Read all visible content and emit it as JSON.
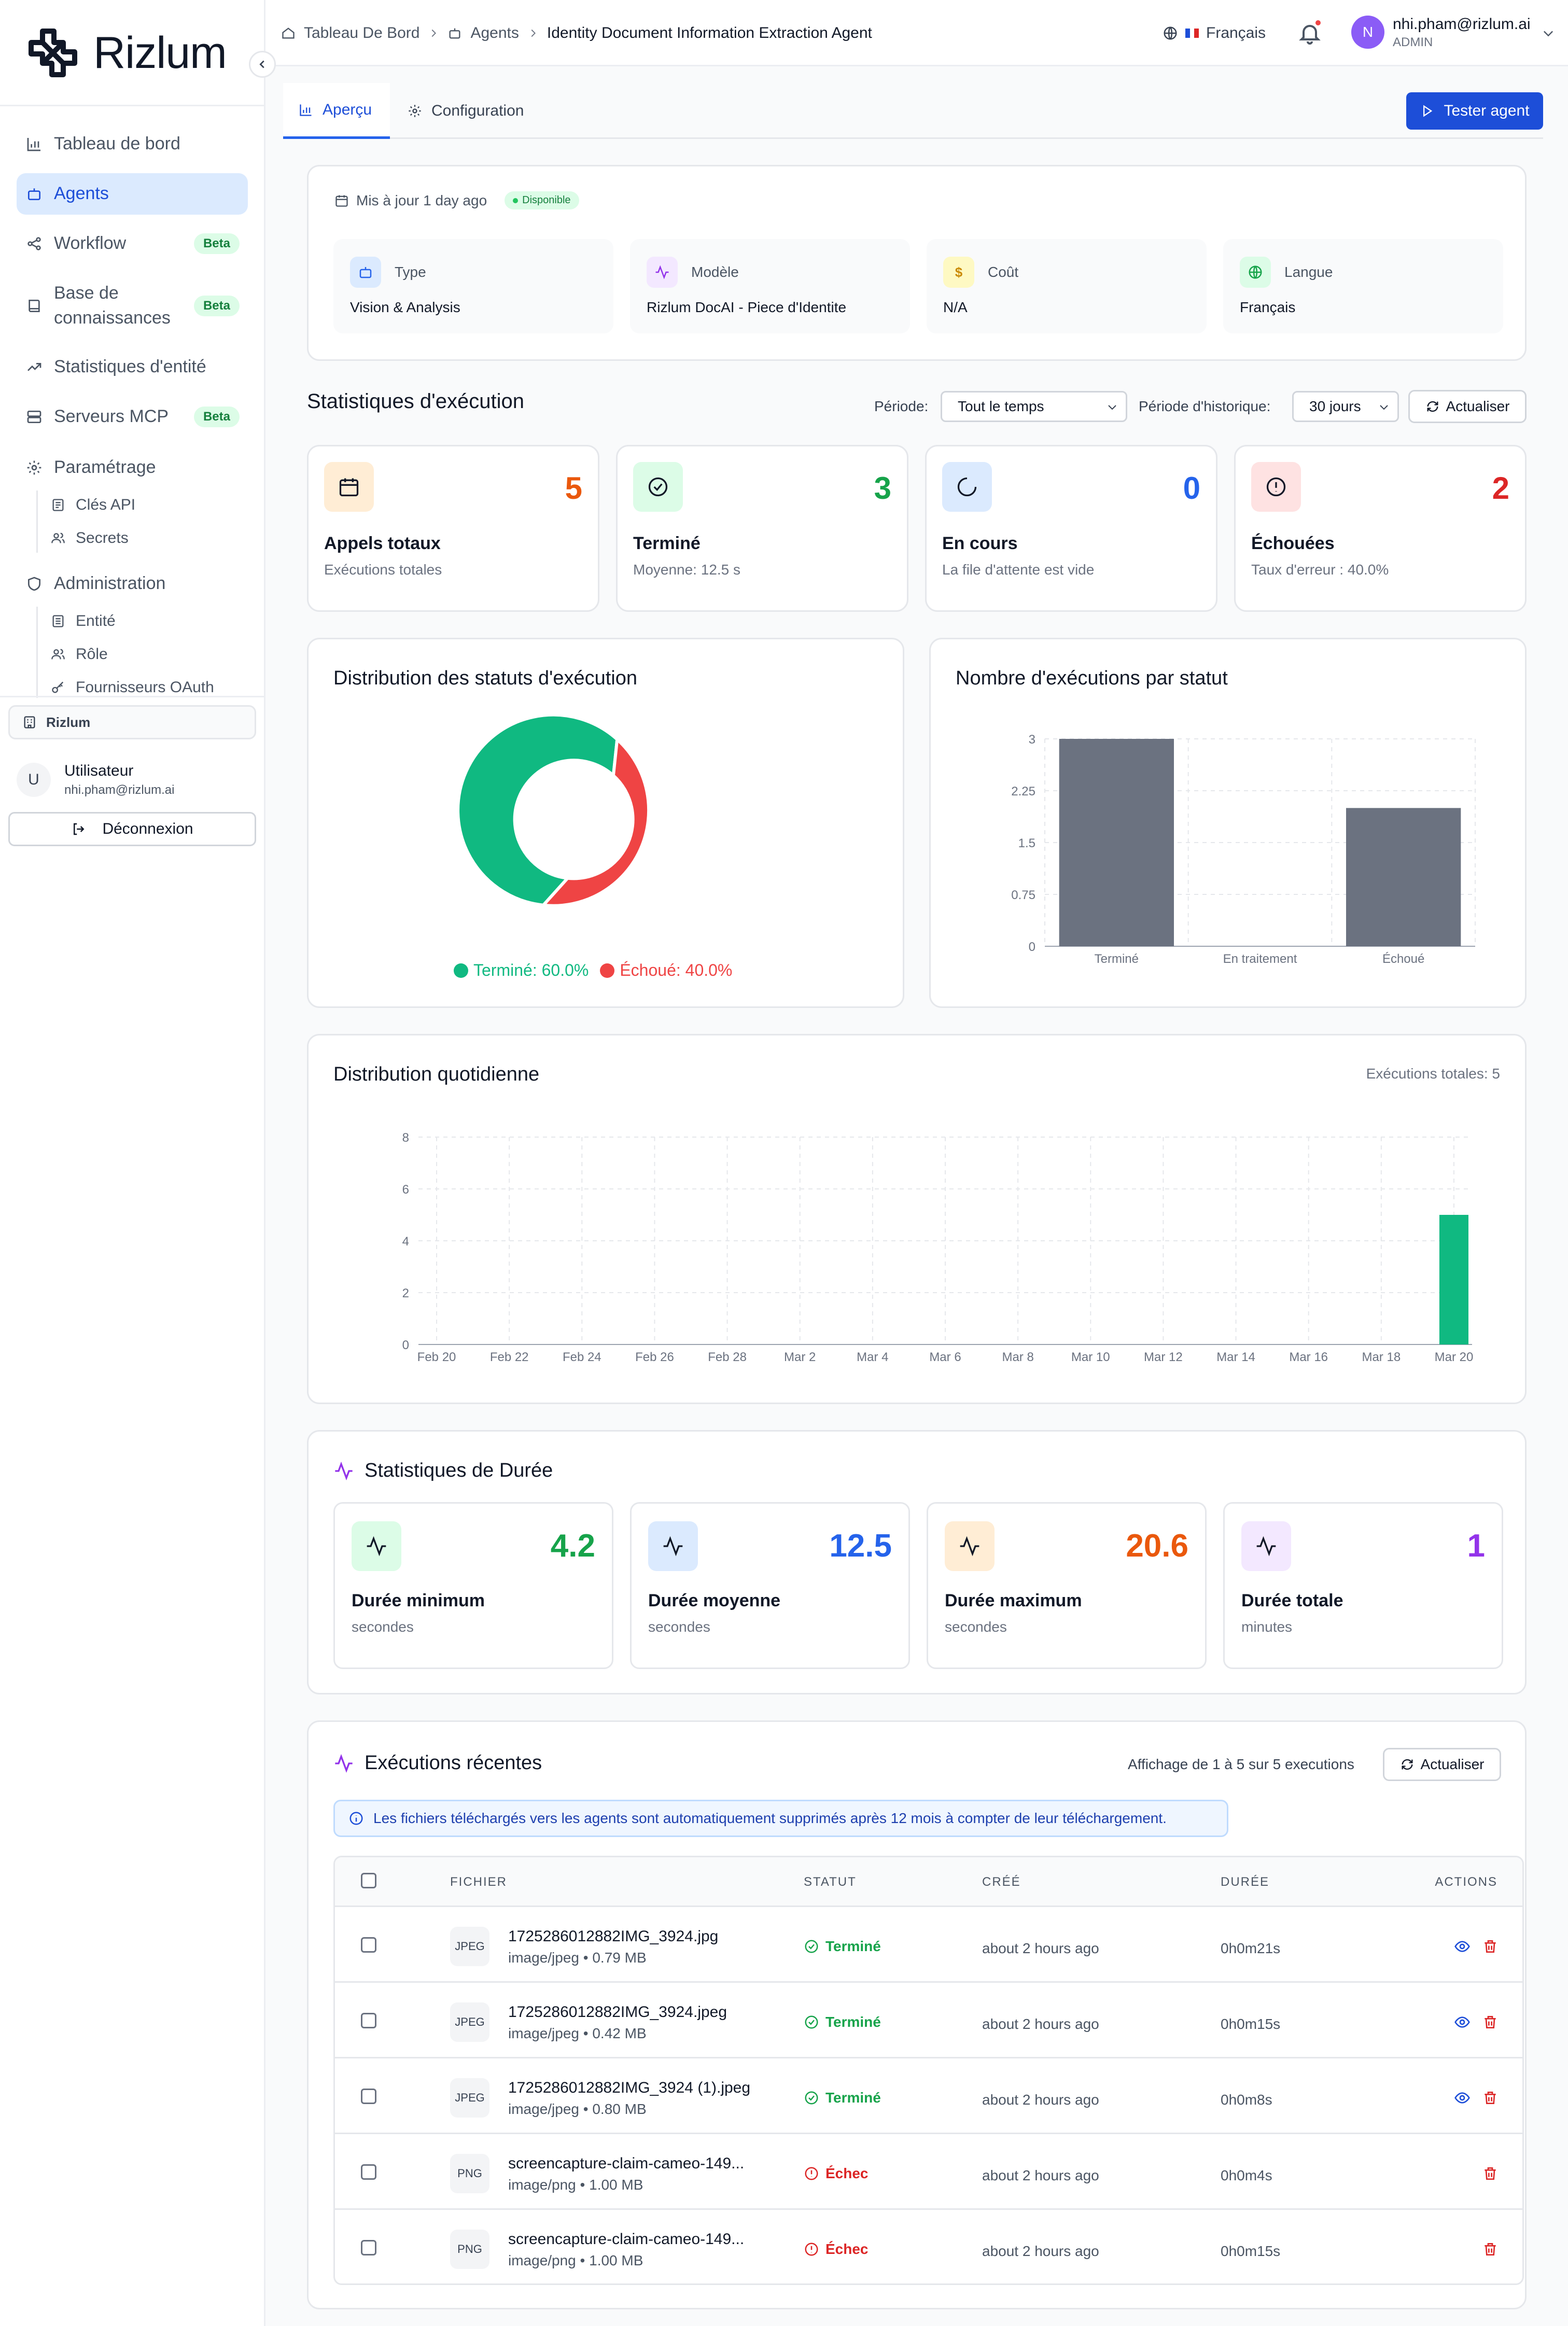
{
  "app": {
    "logo_text": "Rizlum"
  },
  "sidebar": {
    "items": [
      {
        "label": "Tableau de bord",
        "icon": "bar-chart-icon"
      },
      {
        "label": "Agents",
        "icon": "bot-icon",
        "active": true
      },
      {
        "label": "Workflow",
        "icon": "workflow-icon",
        "badge": "Beta"
      },
      {
        "label": "Base de connaissances",
        "icon": "book-icon",
        "badge": "Beta"
      },
      {
        "label": "Statistiques d'entité",
        "icon": "trending-icon"
      },
      {
        "label": "Serveurs MCP",
        "icon": "server-icon",
        "badge": "Beta"
      },
      {
        "label": "Paramétrage",
        "icon": "gear-icon"
      }
    ],
    "settings_sub": [
      {
        "label": "Clés API"
      },
      {
        "label": "Secrets"
      }
    ],
    "admin": {
      "label": "Administration"
    },
    "admin_sub": [
      {
        "label": "Entité"
      },
      {
        "label": "Rôle"
      },
      {
        "label": "Fournisseurs OAuth"
      }
    ],
    "org": "Rizlum",
    "user": {
      "avatar": "U",
      "name": "Utilisateur",
      "email": "nhi.pham@rizlum.ai"
    },
    "logout": "Déconnexion"
  },
  "header": {
    "breadcrumb": [
      "Tableau De Bord",
      "Agents",
      "Identity Document Information Extraction Agent"
    ],
    "language": "Français",
    "user_initial": "N",
    "user_email": "nhi.pham@rizlum.ai",
    "user_role": "ADMIN"
  },
  "tabs": [
    {
      "label": "Aperçu",
      "active": true
    },
    {
      "label": "Configuration"
    }
  ],
  "test_button": "Tester agent",
  "overview": {
    "updated": "Mis à jour 1 day ago",
    "status_badge": "Disponible",
    "info": [
      {
        "label": "Type",
        "value": "Vision & Analysis",
        "icon": "bot-icon",
        "color": "#dbeafe"
      },
      {
        "label": "Modèle",
        "value": "Rizlum DocAI - Piece d'Identite",
        "icon": "activity-icon",
        "color": "#f3e8ff"
      },
      {
        "label": "Coût",
        "value": "N/A",
        "icon": "dollar-icon",
        "color": "#fef9c3"
      },
      {
        "label": "Langue",
        "value": "Français",
        "icon": "globe-icon",
        "color": "#dcfce7"
      }
    ]
  },
  "exec_stats": {
    "title": "Statistiques d'exécution",
    "period_label": "Période:",
    "period_value": "Tout le temps",
    "history_label": "Période d'historique:",
    "history_value": "30 jours",
    "refresh": "Actualiser",
    "cards": [
      {
        "value": "5",
        "title": "Appels totaux",
        "sub": "Exécutions totales",
        "icon": "calendar-icon",
        "color": "#ea580c",
        "bg": "#ffedd5"
      },
      {
        "value": "3",
        "title": "Terminé",
        "sub": "Moyenne: 12.5 s",
        "icon": "check-circle-icon",
        "color": "#16a34a",
        "bg": "#dcfce7"
      },
      {
        "value": "0",
        "title": "En cours",
        "sub": "La file d'attente est vide",
        "icon": "loader-icon",
        "color": "#2563eb",
        "bg": "#dbeafe"
      },
      {
        "value": "2",
        "title": "Échouées",
        "sub": "Taux d'erreur : 40.0%",
        "icon": "alert-circle-icon",
        "color": "#dc2626",
        "bg": "#fee2e2"
      }
    ]
  },
  "donut": {
    "title": "Distribution des statuts d'exécution",
    "legend": [
      {
        "label": "Terminé: 60.0%",
        "color": "#10b981"
      },
      {
        "label": "Échoué: 40.0%",
        "color": "#ef4444"
      }
    ]
  },
  "bar": {
    "title": "Nombre d'exécutions par statut"
  },
  "daily": {
    "title": "Distribution quotidienne",
    "total": "Exécutions totales: 5"
  },
  "chart_data": [
    {
      "type": "pie",
      "title": "Distribution des statuts d'exécution",
      "categories": [
        "Terminé",
        "Échoué"
      ],
      "values": [
        60.0,
        40.0
      ],
      "colors": [
        "#10b981",
        "#ef4444"
      ]
    },
    {
      "type": "bar",
      "title": "Nombre d'exécutions par statut",
      "categories": [
        "Terminé",
        "En traitement",
        "Échoué"
      ],
      "values": [
        3,
        0,
        2
      ],
      "yticks": [
        "0",
        "0.75",
        "1.5",
        "2.25",
        "3"
      ],
      "ylim": [
        0,
        3
      ],
      "grid": true,
      "color": "#6b7280"
    },
    {
      "type": "bar",
      "title": "Distribution quotidienne",
      "categories": [
        "Feb 20",
        "Feb 21",
        "Feb 22",
        "Feb 23",
        "Feb 24",
        "Feb 25",
        "Feb 26",
        "Feb 27",
        "Feb 28",
        "Mar 1",
        "Mar 2",
        "Mar 3",
        "Mar 4",
        "Mar 5",
        "Mar 6",
        "Mar 7",
        "Mar 8",
        "Mar 9",
        "Mar 10",
        "Mar 11",
        "Mar 12",
        "Mar 13",
        "Mar 14",
        "Mar 15",
        "Mar 16",
        "Mar 17",
        "Mar 18",
        "Mar 19",
        "Mar 20"
      ],
      "values": [
        0,
        0,
        0,
        0,
        0,
        0,
        0,
        0,
        0,
        0,
        0,
        0,
        0,
        0,
        0,
        0,
        0,
        0,
        0,
        0,
        0,
        0,
        0,
        0,
        0,
        0,
        0,
        0,
        5
      ],
      "xticks": [
        "Feb 20",
        "Feb 22",
        "Feb 24",
        "Feb 26",
        "Feb 28",
        "Mar 2",
        "Mar 4",
        "Mar 6",
        "Mar 8",
        "Mar 10",
        "Mar 12",
        "Mar 14",
        "Mar 16",
        "Mar 18",
        "Mar 20"
      ],
      "yticks": [
        "0",
        "2",
        "4",
        "6",
        "8"
      ],
      "ylim": [
        0,
        8
      ],
      "grid": true,
      "color": "#10b981"
    }
  ],
  "duration": {
    "title": "Statistiques de Durée",
    "tiles": [
      {
        "value": "4.2",
        "title": "Durée minimum",
        "sub": "secondes",
        "color": "#16a34a",
        "bg": "#dcfce7"
      },
      {
        "value": "12.5",
        "title": "Durée moyenne",
        "sub": "secondes",
        "color": "#2563eb",
        "bg": "#dbeafe"
      },
      {
        "value": "20.6",
        "title": "Durée maximum",
        "sub": "secondes",
        "color": "#ea580c",
        "bg": "#ffedd5"
      },
      {
        "value": "1",
        "title": "Durée totale",
        "sub": "minutes",
        "color": "#9333ea",
        "bg": "#f3e8ff"
      }
    ]
  },
  "recent": {
    "title": "Exécutions récentes",
    "showing": "Affichage de 1 à 5 sur 5 executions",
    "refresh": "Actualiser",
    "notice": "Les fichiers téléchargés vers les agents sont automatiquement supprimés après 12 mois à compter de leur téléchargement.",
    "columns": [
      "FICHIER",
      "STATUT",
      "CRÉÉ",
      "DURÉE",
      "ACTIONS"
    ],
    "rows": [
      {
        "type": "JPEG",
        "name": "1725286012882IMG_3924.jpg",
        "meta": "image/jpeg  • 0.79 MB",
        "status": "Terminé",
        "ok": true,
        "created": "about 2 hours ago",
        "duration": "0h0m21s"
      },
      {
        "type": "JPEG",
        "name": "1725286012882IMG_3924.jpeg",
        "meta": "image/jpeg  • 0.42 MB",
        "status": "Terminé",
        "ok": true,
        "created": "about 2 hours ago",
        "duration": "0h0m15s"
      },
      {
        "type": "JPEG",
        "name": "1725286012882IMG_3924 (1).jpeg",
        "meta": "image/jpeg  • 0.80 MB",
        "status": "Terminé",
        "ok": true,
        "created": "about 2 hours ago",
        "duration": "0h0m8s"
      },
      {
        "type": "PNG",
        "name": "screencapture-claim-cameo-149...",
        "meta": "image/png  • 1.00 MB",
        "status": "Échec",
        "ok": false,
        "created": "about 2 hours ago",
        "duration": "0h0m4s"
      },
      {
        "type": "PNG",
        "name": "screencapture-claim-cameo-149...",
        "meta": "image/png  • 1.00 MB",
        "status": "Échec",
        "ok": false,
        "created": "about 2 hours ago",
        "duration": "0h0m15s"
      }
    ]
  }
}
